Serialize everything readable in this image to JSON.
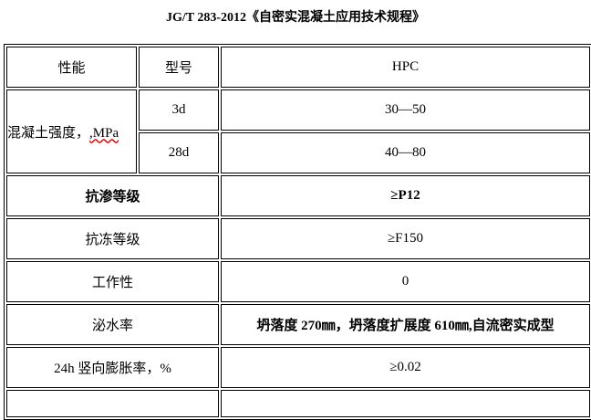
{
  "title": "JG/T 283-2012《自密实混凝土应用技术规程》",
  "table": {
    "header": {
      "property": "性能",
      "model": "型号",
      "value": "HPC"
    },
    "strength": {
      "label_main": "混凝土强度，",
      "label_unit": ",MPa",
      "rows": [
        {
          "age": "3d",
          "value": "30—50"
        },
        {
          "age": "28d",
          "value": "40—80"
        }
      ]
    },
    "rows": [
      {
        "property": "抗渗等级",
        "value": "≥P12",
        "bold": true
      },
      {
        "property": "抗冻等级",
        "value": "≥F150"
      },
      {
        "property": "工作性",
        "value": "0"
      },
      {
        "property": "泌水率",
        "value": "坍落度 270㎜，坍落度扩展度 610㎜,自流密实成型",
        "bold_value": true
      },
      {
        "property": "24h 竖向膨胀率，%",
        "value": "≥0.02"
      }
    ]
  }
}
